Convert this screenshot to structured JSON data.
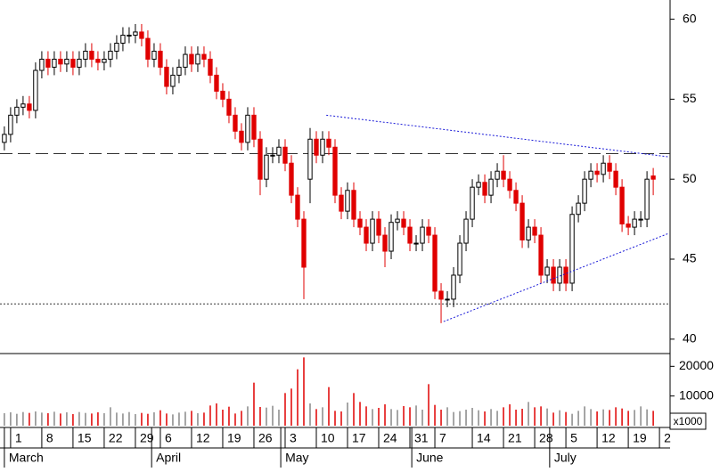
{
  "chart_data": {
    "type": "candlestick",
    "open": [
      52.3,
      52.8,
      54,
      54.5,
      54.7,
      54.3,
      56.8,
      57.5,
      57,
      57.5,
      57.2,
      57.5,
      57,
      57.5,
      58,
      57.5,
      57.3,
      57.5,
      58,
      58.5,
      59,
      59,
      59.2,
      58.8,
      57.5,
      58,
      57,
      55.8,
      56.5,
      57,
      57.8,
      57.2,
      57.8,
      57.5,
      56.5,
      55.5,
      55,
      54,
      53,
      52.3,
      54,
      52.5,
      50,
      51.5,
      51.5,
      52,
      51,
      49,
      47.5,
      50,
      52.5,
      51.5,
      52.5,
      52,
      49,
      48,
      49.3,
      47.5,
      47,
      46,
      47.5,
      46.5,
      45.5,
      47.3,
      47.5,
      47,
      46,
      46,
      47,
      46.5,
      43,
      42.5,
      42.5,
      44,
      46,
      47.5,
      49.5,
      49.8,
      49,
      50,
      50.5,
      50,
      49.3,
      48.5,
      46.2,
      47,
      46.5,
      44,
      44.5,
      43.5,
      44.5,
      43.5,
      47.8,
      48.5,
      50,
      50.5,
      50.3,
      51,
      50.5,
      49.5,
      47.2,
      47,
      47.5,
      47.5,
      50.2
    ],
    "high": [
      53.3,
      54.5,
      55,
      55.2,
      55.2,
      57.3,
      58,
      58,
      58,
      58,
      58,
      58,
      58,
      58.5,
      58.5,
      58,
      58,
      58.5,
      59,
      59.5,
      59.5,
      59.7,
      59.7,
      59.3,
      58.5,
      58.5,
      57.5,
      57,
      57.5,
      58.3,
      58.3,
      58.3,
      58.3,
      58,
      57,
      56,
      55.5,
      54.5,
      53.5,
      54.5,
      54.5,
      53,
      52,
      52,
      52.5,
      52.5,
      51.5,
      49.5,
      48,
      53.2,
      53,
      53,
      53,
      52.5,
      49.5,
      49.8,
      49.8,
      48,
      47.5,
      48,
      48,
      47,
      47.8,
      48,
      48,
      47.5,
      46.5,
      47.5,
      47.5,
      47,
      43.5,
      43,
      44.5,
      46.5,
      48,
      50,
      50.3,
      50.3,
      50.5,
      51,
      51.5,
      50.5,
      49.8,
      49,
      47.5,
      47.5,
      47,
      45,
      45,
      45,
      45,
      48.3,
      49,
      50.5,
      51,
      51,
      51.5,
      51.5,
      51,
      50,
      47.7,
      48,
      48,
      50.5,
      50.7
    ],
    "low": [
      51.8,
      52.3,
      53.5,
      54,
      53.8,
      53.8,
      56.3,
      56.5,
      56.5,
      56.7,
      56.7,
      56.5,
      56.5,
      57,
      57,
      56.8,
      56.8,
      57,
      57.5,
      58,
      58.5,
      58.5,
      58.3,
      57,
      57,
      56.5,
      55.3,
      55.3,
      56,
      56.5,
      56.7,
      56.7,
      57,
      56,
      55,
      54.5,
      53.5,
      52.5,
      51.8,
      51.8,
      52,
      49,
      49.5,
      51,
      51,
      50.5,
      48.5,
      47,
      42.5,
      48.5,
      51,
      51,
      51.5,
      48.5,
      47.5,
      47.5,
      47,
      46.5,
      45.5,
      45.5,
      46,
      44.5,
      45,
      46.8,
      46.5,
      45.5,
      45.5,
      45.5,
      46,
      42.5,
      41,
      42,
      42,
      43.5,
      45.5,
      47,
      49,
      48.5,
      48.5,
      49.5,
      49.5,
      48.8,
      48,
      45.7,
      45.7,
      46,
      43.5,
      43.5,
      43,
      43,
      43,
      43,
      47.3,
      48,
      49.5,
      49.8,
      49.8,
      50,
      49,
      46.7,
      46.5,
      46.5,
      47,
      47,
      49
    ],
    "close": [
      52.8,
      54,
      54.5,
      54.7,
      54.3,
      56.8,
      57.5,
      57,
      57.5,
      57.2,
      57.5,
      57,
      57.5,
      58,
      57.5,
      57.3,
      57.5,
      58,
      58.5,
      59,
      59,
      59.2,
      58.8,
      57.5,
      58,
      57,
      55.8,
      56.5,
      57,
      57.8,
      57.2,
      57.8,
      57.5,
      56.5,
      55.5,
      55,
      54,
      53,
      52.3,
      54,
      52.5,
      50,
      51.5,
      51.5,
      52,
      51,
      49,
      47.5,
      44.5,
      52.5,
      51.5,
      52.5,
      52,
      49,
      48,
      49.3,
      47.5,
      47,
      46,
      47.5,
      46.5,
      45.5,
      47.3,
      47.5,
      47,
      46,
      46,
      47,
      46.5,
      43,
      42.5,
      42.5,
      44,
      46,
      47.5,
      49.5,
      49.8,
      49,
      50,
      50.5,
      50,
      49.3,
      48.5,
      46.2,
      47,
      46.5,
      44,
      44.5,
      43.5,
      44.5,
      43.5,
      47.8,
      48.5,
      50,
      50.5,
      50.3,
      51,
      50.5,
      49.5,
      47.2,
      47,
      47.5,
      47.5,
      50,
      50
    ],
    "volume": [
      4200,
      4500,
      4000,
      4600,
      4300,
      4800,
      4400,
      4200,
      4700,
      4100,
      4500,
      3900,
      4600,
      4300,
      4100,
      4500,
      4200,
      6200,
      4400,
      4100,
      4600,
      3900,
      4300,
      4000,
      4500,
      5200,
      4100,
      3800,
      4400,
      4700,
      5000,
      4200,
      4400,
      6800,
      7500,
      5400,
      6400,
      4100,
      5000,
      6500,
      14500,
      6300,
      6100,
      6700,
      5400,
      11000,
      12500,
      19000,
      23000,
      7500,
      5600,
      6200,
      13000,
      5000,
      4800,
      7800,
      11000,
      8000,
      6500,
      5600,
      6000,
      7200,
      5600,
      5300,
      6600,
      6200,
      6800,
      5400,
      14000,
      7000,
      5400,
      6200,
      4600,
      4900,
      5400,
      6000,
      5200,
      4800,
      5600,
      5000,
      6200,
      7200,
      5400,
      5700,
      8000,
      6200,
      6500,
      5800,
      4400,
      5200,
      4600,
      4000,
      5000,
      6500,
      5600,
      4800,
      5500,
      5300,
      6200,
      5800,
      5000,
      5300,
      6500,
      5500,
      5000
    ],
    "xlim": [
      -0.7,
      106.7
    ],
    "ylim": [
      39.1,
      61.2
    ],
    "yticks": [
      40,
      45,
      50,
      55,
      60
    ],
    "volume_ylim": [
      0,
      24000
    ],
    "volume_ticks": [
      10000,
      20000
    ],
    "volume_unit": "x1000",
    "xticks": [
      {
        "value": 1,
        "label": "1"
      },
      {
        "value": 6,
        "label": "8"
      },
      {
        "value": 11,
        "label": "15"
      },
      {
        "value": 16,
        "label": "22"
      },
      {
        "value": 21,
        "label": "29"
      },
      {
        "value": 25,
        "label": "6"
      },
      {
        "value": 30,
        "label": "12"
      },
      {
        "value": 35,
        "label": "19"
      },
      {
        "value": 40,
        "label": "26"
      },
      {
        "value": 45,
        "label": "3"
      },
      {
        "value": 50,
        "label": "10"
      },
      {
        "value": 55,
        "label": "17"
      },
      {
        "value": 60,
        "label": "24"
      },
      {
        "value": 65,
        "label": "31"
      },
      {
        "value": 69,
        "label": "7"
      },
      {
        "value": 75,
        "label": "14"
      },
      {
        "value": 80,
        "label": "21"
      },
      {
        "value": 85,
        "label": "28"
      },
      {
        "value": 90,
        "label": "5"
      },
      {
        "value": 95,
        "label": "12"
      },
      {
        "value": 100,
        "label": "19"
      },
      {
        "value": 105,
        "label": "2"
      }
    ],
    "months": [
      {
        "value": 0,
        "label": "March"
      },
      {
        "value": 23.6,
        "label": "April"
      },
      {
        "value": 44.3,
        "label": "May"
      },
      {
        "value": 65.3,
        "label": "June"
      },
      {
        "value": 87.4,
        "label": "July"
      }
    ],
    "levels": [
      {
        "value": 51.6,
        "style": "dashed"
      },
      {
        "value": 42.2,
        "style": "dotted"
      }
    ],
    "trendlines": [
      {
        "x": [
          51.6,
          106.4
        ],
        "y": [
          54,
          51.4
        ]
      },
      {
        "x": [
          70.4,
          106.4
        ],
        "y": [
          41.1,
          46.6
        ]
      }
    ],
    "up_color": "#ffffff",
    "down_color": "#e00000",
    "line_color": "#1a1ad8"
  }
}
